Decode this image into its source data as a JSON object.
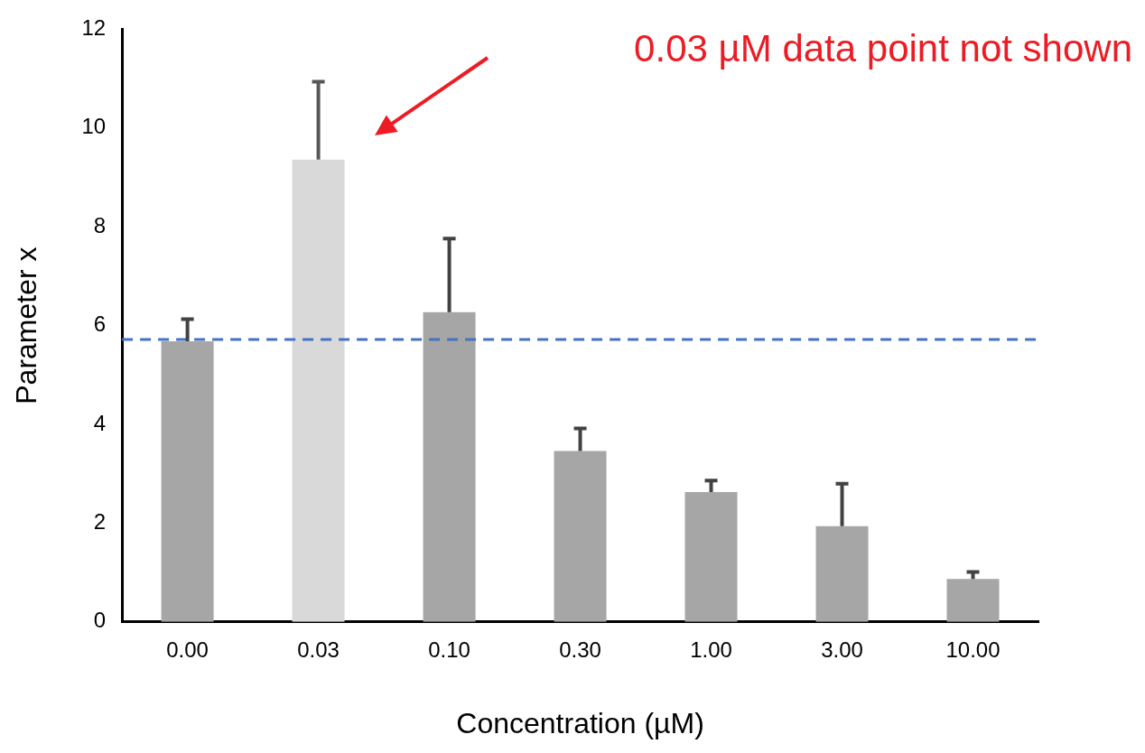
{
  "chart_data": {
    "type": "bar",
    "xlabel": "Concentration (µM)",
    "ylabel": "Parameter x",
    "categories": [
      "0.00",
      "0.03",
      "0.10",
      "0.30",
      "1.00",
      "3.00",
      "10.00"
    ],
    "values": [
      5.68,
      9.36,
      6.27,
      3.46,
      2.63,
      1.94,
      0.87
    ],
    "colors": [
      "#a6a6a6",
      "#d9d9d9",
      "#a6a6a6",
      "#a6a6a6",
      "#a6a6a6",
      "#a6a6a6",
      "#a6a6a6"
    ],
    "errors": [
      [
        5.68,
        6.13
      ],
      [
        9.36,
        10.94
      ],
      [
        6.27,
        7.76
      ],
      [
        3.46,
        3.92
      ],
      [
        2.63,
        2.86
      ],
      [
        1.94,
        2.8
      ],
      [
        0.87,
        1.01
      ]
    ],
    "ylim": [
      0,
      12
    ],
    "yticks": [
      0,
      2,
      4,
      6,
      8,
      10,
      12
    ],
    "grid": false,
    "legend": false,
    "ref_lines": [
      {
        "axis": "y",
        "value": 5.72,
        "color": "#4472c4",
        "line_style": "dashed"
      }
    ],
    "annotations": [
      "0.03 µM data point not shown"
    ]
  }
}
